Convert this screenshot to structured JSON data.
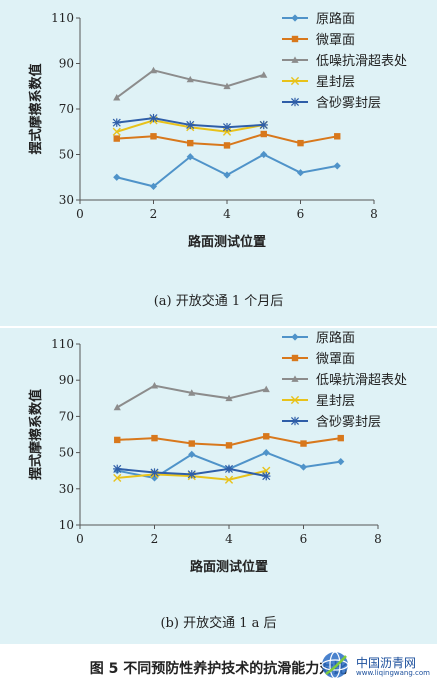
{
  "colors": {
    "background": "#dff2f6",
    "axis": "#555555"
  },
  "figure_caption": "图 5   不同预防性养护技术的抗滑能力对比",
  "watermark": {
    "text": "中国沥青网",
    "url": "www.liqingwang.com"
  },
  "chart_data": [
    {
      "type": "line",
      "panel_label": "(a) 开放交通 1 个月后",
      "xlabel": "路面测试位置",
      "ylabel": "摆式摩擦系数值",
      "xlim": [
        0,
        8
      ],
      "ylim": [
        30,
        110
      ],
      "xticks": [
        0,
        2,
        4,
        6,
        8
      ],
      "yticks": [
        30,
        50,
        70,
        90,
        110
      ],
      "grid": false,
      "legend": "top-right",
      "series": [
        {
          "name": "原路面",
          "color": "#4f93c9",
          "marker": "diamond",
          "x": [
            1,
            2,
            3,
            4,
            5,
            6,
            7
          ],
          "values": [
            40,
            36,
            49,
            41,
            50,
            42,
            45
          ]
        },
        {
          "name": "微罩面",
          "color": "#d8781c",
          "marker": "square",
          "x": [
            1,
            2,
            3,
            4,
            5,
            6,
            7
          ],
          "values": [
            57,
            58,
            55,
            54,
            59,
            55,
            58
          ]
        },
        {
          "name": "低噪抗滑超表处",
          "color": "#8c8c8c",
          "marker": "triangle",
          "x": [
            1,
            2,
            3,
            4,
            5
          ],
          "values": [
            75,
            87,
            83,
            80,
            85
          ]
        },
        {
          "name": "星封层",
          "color": "#e8c21a",
          "marker": "x",
          "x": [
            1,
            2,
            3,
            4,
            5
          ],
          "values": [
            60,
            65,
            62,
            60,
            63
          ]
        },
        {
          "name": "含砂雾封层",
          "color": "#2f5ea8",
          "marker": "star",
          "x": [
            1,
            2,
            3,
            4,
            5
          ],
          "values": [
            64,
            66,
            63,
            62,
            63
          ]
        }
      ]
    },
    {
      "type": "line",
      "panel_label": "(b) 开放交通 1 a 后",
      "xlabel": "路面测试位置",
      "ylabel": "摆式摩擦系数值",
      "xlim": [
        0,
        8
      ],
      "ylim": [
        10,
        110
      ],
      "xticks": [
        0,
        2,
        4,
        6,
        8
      ],
      "yticks": [
        10,
        30,
        50,
        70,
        90,
        110
      ],
      "grid": false,
      "legend": "top-right",
      "series": [
        {
          "name": "原路面",
          "color": "#4f93c9",
          "marker": "diamond",
          "x": [
            1,
            2,
            3,
            4,
            5,
            6,
            7
          ],
          "values": [
            40,
            36,
            49,
            41,
            50,
            42,
            45
          ]
        },
        {
          "name": "微罩面",
          "color": "#d8781c",
          "marker": "square",
          "x": [
            1,
            2,
            3,
            4,
            5,
            6,
            7
          ],
          "values": [
            57,
            58,
            55,
            54,
            59,
            55,
            58
          ]
        },
        {
          "name": "低噪抗滑超表处",
          "color": "#8c8c8c",
          "marker": "triangle",
          "x": [
            1,
            2,
            3,
            4,
            5
          ],
          "values": [
            75,
            87,
            83,
            80,
            85
          ]
        },
        {
          "name": "星封层",
          "color": "#e8c21a",
          "marker": "x",
          "x": [
            1,
            2,
            3,
            4,
            5
          ],
          "values": [
            36,
            38,
            37,
            35,
            40
          ]
        },
        {
          "name": "含砂雾封层",
          "color": "#2f5ea8",
          "marker": "star",
          "x": [
            1,
            2,
            3,
            4,
            5
          ],
          "values": [
            41,
            39,
            38,
            41,
            37
          ]
        }
      ]
    }
  ]
}
